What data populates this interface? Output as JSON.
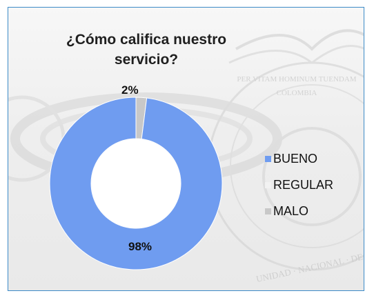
{
  "chart_data": {
    "type": "pie",
    "variant": "donut",
    "title": "¿Cómo califica nuestro servicio?",
    "title_lines": [
      "¿Cómo califica nuestro",
      "servicio?"
    ],
    "categories": [
      "BUENO",
      "REGULAR",
      "MALO"
    ],
    "values": [
      98,
      0,
      2
    ],
    "data_labels": [
      "98%",
      "",
      "2%"
    ],
    "colors": [
      "#6f9cf0",
      "#f2f2f2",
      "#c8c8c8"
    ],
    "legend_position": "right"
  },
  "watermark": {
    "motto": "PER VITAM HOMINUM TUENDAM",
    "country": "COLOMBIA",
    "ring_text": "UNIDAD · NACIONAL · DE · PRO"
  }
}
